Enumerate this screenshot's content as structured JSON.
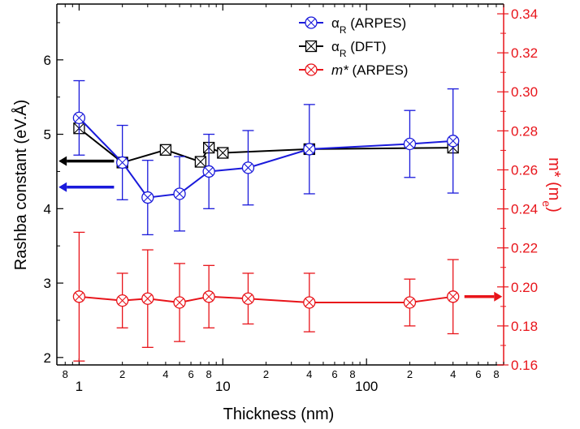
{
  "chart_data": {
    "type": "line",
    "xlabel": "Thickness (nm)",
    "ylabel": "Rashba constant (eV.Å)",
    "y2label": "m* (m_e)",
    "xscale": "log",
    "xlim": [
      0.7,
      900
    ],
    "ylim": [
      1.9,
      6.75
    ],
    "y2lim": [
      0.16,
      0.345
    ],
    "x_major_ticks": [
      1,
      10,
      100
    ],
    "x_minor_ticks": [
      0.8,
      2,
      4,
      6,
      8,
      20,
      40,
      60,
      80,
      200,
      400,
      600,
      800
    ],
    "y_ticks": [
      2,
      3,
      4,
      5,
      6
    ],
    "y2_ticks": [
      0.16,
      0.18,
      0.2,
      0.22,
      0.24,
      0.26,
      0.28,
      0.3,
      0.32,
      0.34
    ],
    "grid": false,
    "legend_position": "top-right",
    "colors": {
      "arpes_alpha": "#1a1adb",
      "dft_alpha": "#000000",
      "mass": "#e8141a",
      "right_axis": "#e8141a"
    },
    "series": [
      {
        "name": "αR (ARPES)",
        "axis": "left",
        "marker": "circle-cross",
        "color": "#1a1adb",
        "x": [
          1,
          2,
          3,
          5,
          8,
          15,
          40,
          200,
          400
        ],
        "y": [
          5.22,
          4.62,
          4.15,
          4.2,
          4.5,
          4.55,
          4.8,
          4.87,
          4.91
        ],
        "yerr": [
          0.5,
          0.5,
          0.5,
          0.5,
          0.5,
          0.5,
          0.6,
          0.45,
          0.7
        ]
      },
      {
        "name": "αR (DFT)",
        "axis": "left",
        "marker": "square-x",
        "color": "#000000",
        "x": [
          1,
          2,
          4,
          7,
          8,
          10,
          40,
          400
        ],
        "y": [
          5.08,
          4.62,
          4.79,
          4.63,
          4.82,
          4.75,
          4.8,
          4.82
        ]
      },
      {
        "name": "m* (ARPES)",
        "axis": "right",
        "marker": "circle-x",
        "color": "#e8141a",
        "x": [
          1,
          2,
          3,
          5,
          8,
          15,
          40,
          200,
          400
        ],
        "y": [
          0.195,
          0.193,
          0.194,
          0.192,
          0.195,
          0.194,
          0.192,
          0.192,
          0.195
        ],
        "yerr": [
          0.033,
          0.014,
          0.025,
          0.02,
          0.016,
          0.013,
          0.015,
          0.012,
          0.019
        ]
      }
    ],
    "legend": {
      "entries": [
        {
          "label": "α",
          "sub": "R",
          "rest": " (ARPES)",
          "series": 0
        },
        {
          "label": "α",
          "sub": "R",
          "rest": " (DFT)",
          "series": 1
        },
        {
          "label": "m*",
          "sub": "",
          "rest": " (ARPES)",
          "series": 2,
          "italic": true
        }
      ]
    },
    "y2label_parts": {
      "main": "m* (m",
      "sub": "e",
      "close": ")"
    },
    "annotations": [
      {
        "type": "arrow",
        "direction": "left",
        "color": "#000000",
        "axis": "left",
        "y": 4.64,
        "x_from": 1.75,
        "x_to": 0.72
      },
      {
        "type": "arrow",
        "direction": "left",
        "color": "#1a1adb",
        "axis": "left",
        "y": 4.29,
        "x_from": 1.75,
        "x_to": 0.72
      },
      {
        "type": "arrow",
        "direction": "right",
        "color": "#e8141a",
        "axis": "right",
        "y": 0.195,
        "x_from": 480,
        "x_to": 880
      }
    ]
  }
}
